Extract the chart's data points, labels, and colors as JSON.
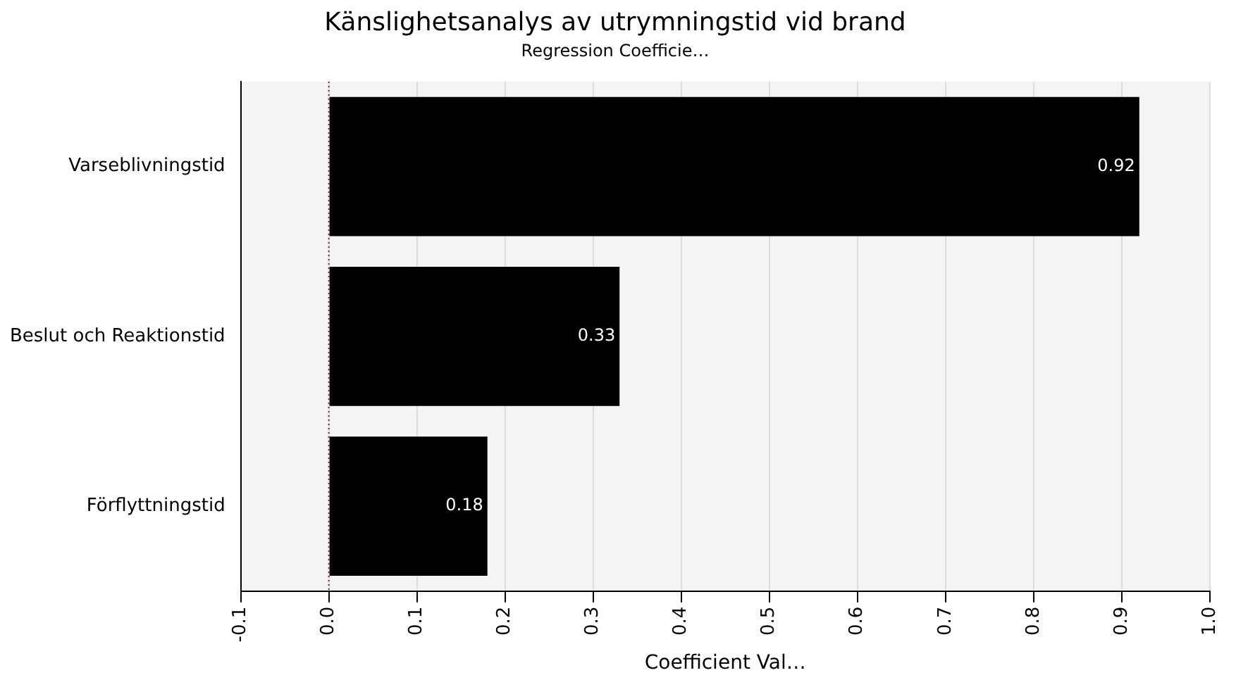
{
  "chart_data": {
    "type": "bar",
    "orientation": "horizontal",
    "title": "Känslighetsanalys av utrymningstid vid brand",
    "subtitle": "Regression Coefficie…",
    "xlabel": "Coefficient Val…",
    "categories": [
      "Varseblivningstid",
      "Beslut och Reaktionstid",
      "Förflyttningstid"
    ],
    "values": [
      0.92,
      0.33,
      0.18
    ],
    "color": "#000000",
    "xlim": [
      -0.1,
      1.0
    ],
    "xticks": [
      -0.1,
      {
        "value": 0,
        "label": "0.0"
      },
      0.1,
      0.2,
      0.3,
      0.4,
      0.5,
      0.6,
      0.7,
      0.8,
      0.9,
      {
        "value": 1,
        "label": "1.0"
      }
    ],
    "grid": "x",
    "data_labels": true,
    "legend": false,
    "ref_lines": [
      {
        "axis": "x",
        "value": 0,
        "color": "#8b1a2b",
        "line_style": "dotted"
      }
    ]
  }
}
